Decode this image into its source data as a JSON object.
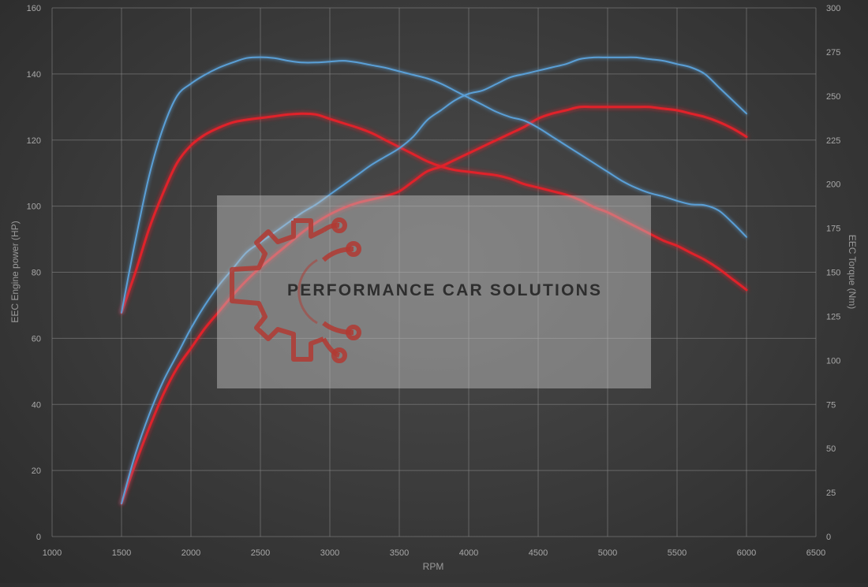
{
  "chart_data": {
    "type": "line",
    "xlabel": "RPM",
    "ylabel_left": "EEC Engine power (HP)",
    "ylabel_right": "EEC Torque (Nm)",
    "xlim": [
      1000,
      6500
    ],
    "ylim_left": [
      0,
      160
    ],
    "ylim_right": [
      0,
      300
    ],
    "x_ticks": [
      1000,
      1500,
      2000,
      2500,
      3000,
      3500,
      4000,
      4500,
      5000,
      5500,
      6000,
      6500
    ],
    "y_ticks_left": [
      0,
      20,
      40,
      60,
      80,
      100,
      120,
      140,
      160
    ],
    "y_ticks_right": [
      0,
      25,
      50,
      75,
      100,
      125,
      150,
      175,
      200,
      225,
      250,
      275,
      300
    ],
    "grid": true,
    "colors": {
      "tuned": "#5a9fd6",
      "stock": "#e0242a"
    },
    "series": [
      {
        "axis": "right",
        "color": "#5a9fd6",
        "x": [
          1500,
          1600,
          1700,
          1800,
          1900,
          2000,
          2100,
          2200,
          2300,
          2400,
          2500,
          2600,
          2700,
          2800,
          2900,
          3000,
          3100,
          3200,
          3300,
          3400,
          3500,
          3600,
          3700,
          3800,
          3900,
          4000,
          4100,
          4200,
          4300,
          4400,
          4500,
          4600,
          4700,
          4800,
          4900,
          5000,
          5100,
          5200,
          5300,
          5400,
          5500,
          5600,
          5700,
          5800,
          5900,
          6000
        ],
        "values": [
          127,
          168,
          205,
          232,
          250,
          257,
          262,
          266,
          269,
          271.5,
          272,
          271.5,
          270,
          269,
          269,
          269.5,
          270,
          269,
          267.5,
          266,
          264,
          262,
          260,
          257,
          253,
          249,
          245,
          241,
          238,
          236,
          232,
          227,
          222,
          217,
          212,
          207,
          202,
          198,
          195,
          193,
          190.5,
          188.5,
          188,
          185,
          178,
          170
        ]
      },
      {
        "axis": "left",
        "color": "#5a9fd6",
        "x": [
          1500,
          1600,
          1700,
          1800,
          1900,
          2000,
          2100,
          2200,
          2300,
          2400,
          2500,
          2600,
          2700,
          2800,
          2900,
          3000,
          3100,
          3200,
          3300,
          3400,
          3500,
          3600,
          3700,
          3800,
          3900,
          4000,
          4100,
          4200,
          4300,
          4400,
          4500,
          4600,
          4700,
          4800,
          4900,
          5000,
          5100,
          5200,
          5300,
          5400,
          5500,
          5600,
          5700,
          5800,
          5900,
          6000
        ],
        "values": [
          10,
          25,
          37,
          47,
          55,
          63,
          70,
          76,
          81,
          86,
          89,
          92,
          95,
          98,
          100.5,
          103.5,
          106.5,
          109.5,
          112.5,
          115,
          117.5,
          121,
          126,
          129,
          132,
          134,
          135,
          137,
          139,
          140,
          141,
          142,
          143,
          144.5,
          145,
          145,
          145,
          145,
          144.5,
          144,
          143,
          142,
          140,
          136,
          132,
          128
        ]
      },
      {
        "axis": "right",
        "color": "#e0242a",
        "x": [
          1500,
          1600,
          1700,
          1800,
          1900,
          2000,
          2100,
          2200,
          2300,
          2400,
          2500,
          2600,
          2700,
          2800,
          2900,
          3000,
          3100,
          3200,
          3300,
          3400,
          3500,
          3600,
          3700,
          3800,
          3900,
          4000,
          4100,
          4200,
          4300,
          4400,
          4500,
          4600,
          4700,
          4800,
          4900,
          5000,
          5100,
          5200,
          5300,
          5400,
          5500,
          5600,
          5700,
          5800,
          5900,
          6000
        ],
        "values": [
          127,
          150,
          175,
          195,
          212,
          222,
          228,
          232,
          235,
          236.5,
          237.5,
          238.5,
          239.5,
          240,
          239.5,
          237,
          234.5,
          232,
          229,
          225,
          221,
          217,
          213,
          210,
          208,
          207,
          206,
          205,
          203,
          200,
          198,
          196,
          194,
          191,
          187,
          184,
          180,
          176,
          172,
          168,
          165,
          161,
          157,
          152,
          146,
          140
        ]
      },
      {
        "axis": "left",
        "color": "#e0242a",
        "x": [
          1500,
          1600,
          1700,
          1800,
          1900,
          2000,
          2100,
          2200,
          2300,
          2400,
          2500,
          2600,
          2700,
          2800,
          2900,
          3000,
          3100,
          3200,
          3300,
          3400,
          3500,
          3600,
          3700,
          3800,
          3900,
          4000,
          4100,
          4200,
          4300,
          4400,
          4500,
          4600,
          4700,
          4800,
          4900,
          5000,
          5100,
          5200,
          5300,
          5400,
          5500,
          5600,
          5700,
          5800,
          5900,
          6000
        ],
        "values": [
          10,
          22,
          33,
          43,
          51,
          57,
          63,
          68,
          73,
          77.5,
          81.5,
          85,
          88.5,
          92,
          95,
          97.5,
          99.5,
          101,
          102,
          103,
          104.5,
          107.5,
          110.5,
          112,
          114,
          116,
          118,
          120,
          122,
          124,
          126.5,
          128,
          129,
          130,
          130,
          130,
          130,
          130,
          130,
          129.5,
          129,
          128,
          127,
          125.5,
          123.5,
          121
        ]
      }
    ]
  },
  "watermark": {
    "text": "PERFORMANCE CAR SOLUTIONS",
    "logo": "gear-circuit-logo",
    "logo_color": "#c0392b"
  }
}
